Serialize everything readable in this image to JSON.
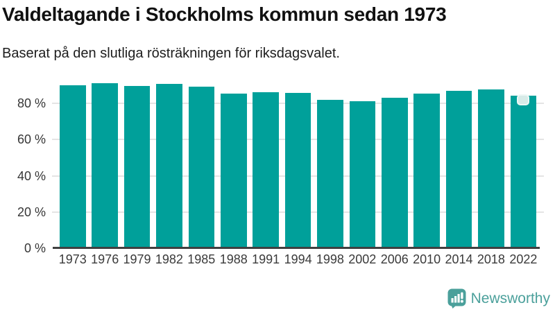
{
  "header": {
    "title": "Valdeltagande i Stockholms kommun sedan 1973",
    "subtitle": "Baserat på den slutliga rösträkningen för riksdagsvalet."
  },
  "chart_data": {
    "type": "bar",
    "title": "Valdeltagande i Stockholms kommun sedan 1973",
    "subtitle": "Baserat på den slutliga rösträkningen för riksdagsvalet.",
    "categories": [
      "1973",
      "1976",
      "1979",
      "1982",
      "1985",
      "1988",
      "1991",
      "1994",
      "1998",
      "2002",
      "2006",
      "2010",
      "2014",
      "2018",
      "2022"
    ],
    "values": [
      90.0,
      91.1,
      89.6,
      90.8,
      89.2,
      85.5,
      86.2,
      85.8,
      81.8,
      81.0,
      82.9,
      85.3,
      86.8,
      87.6,
      84.3
    ],
    "xlabel": "",
    "ylabel": "",
    "ylim": [
      0,
      95
    ],
    "yticks": [
      0,
      20,
      40,
      60,
      80
    ],
    "ytick_labels": [
      "0 %",
      "20 %",
      "40 %",
      "60 %",
      "80 %"
    ],
    "grid": true,
    "legend": "none",
    "bar_color": "#00a09a",
    "highlight_index": 14,
    "highlight_color": "#d7ebe8",
    "highlight_border_color": "#eef7f5"
  },
  "footer": {
    "brand": "Newsworthy",
    "brand_color": "#4ba09b",
    "logo_icon": "newsworthy-speech-bubble-bar-chart-icon"
  }
}
